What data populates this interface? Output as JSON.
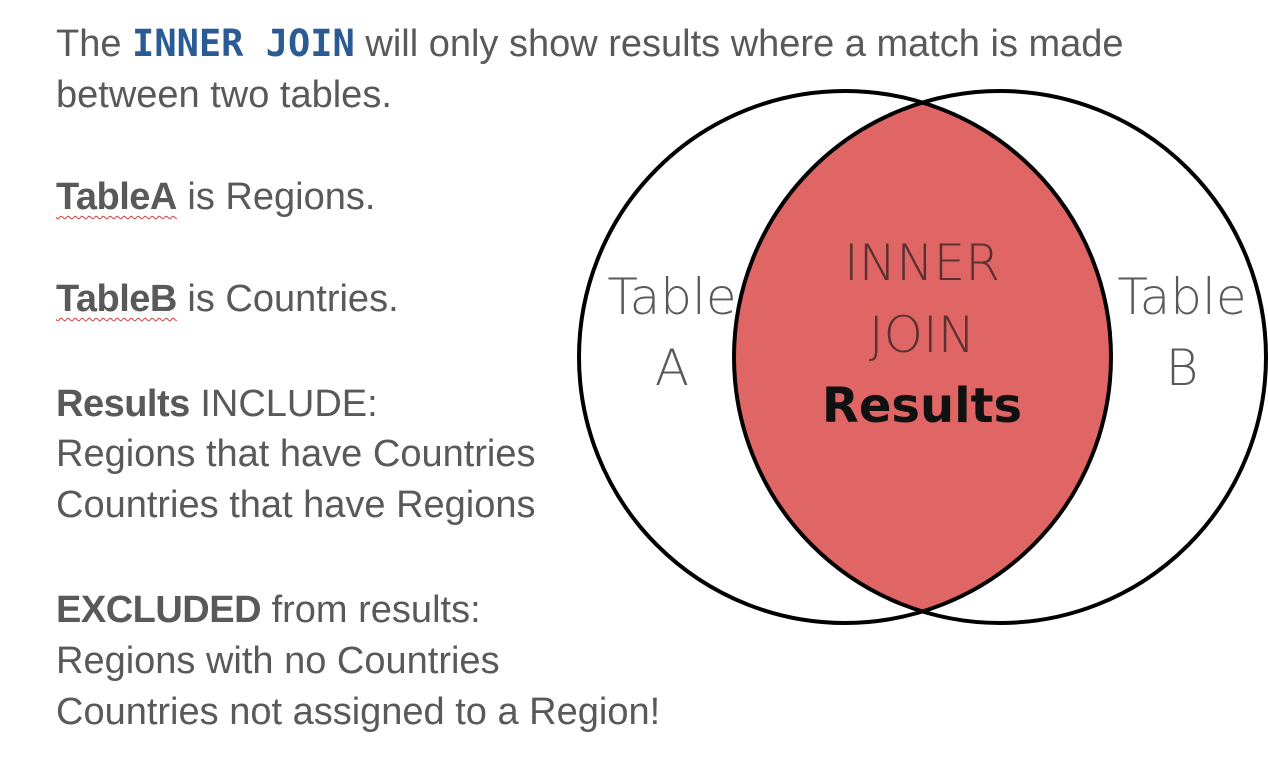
{
  "intro": {
    "prefix": "The ",
    "keyword": "INNER JOIN",
    "suffix": " will only show results where a match is made",
    "line2": "between two tables."
  },
  "table_a": {
    "name": "TableA",
    "rest": " is Regions."
  },
  "table_b": {
    "name": "TableB",
    "rest": " is Countries."
  },
  "results": {
    "heading_bold": "Results",
    "heading_rest": " INCLUDE:",
    "items": [
      "Regions that have Countries",
      "Countries that have Regions"
    ]
  },
  "excluded": {
    "heading_bold": "EXCLUDED",
    "heading_rest": " from results:",
    "items": [
      "Regions with no Countries",
      "Countries not assigned to a Region!"
    ]
  },
  "venn": {
    "left_label_line1": "Table",
    "left_label_line2": "A",
    "right_label_line1": "Table",
    "right_label_line2": "B",
    "center_line1": "INNER",
    "center_line2": "JOIN",
    "center_line3": "Results",
    "intersection_color": "#e06666",
    "outline_color": "#000000"
  }
}
